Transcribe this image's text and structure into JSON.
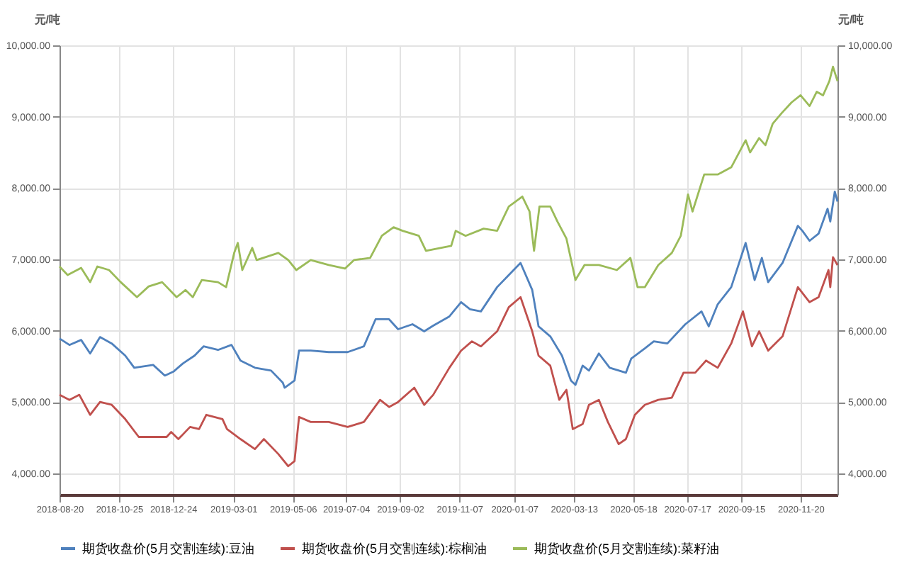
{
  "chart_data": {
    "type": "line",
    "ylabel": "元/吨",
    "y2label": "元/吨",
    "xlim": [
      "2018-08-20",
      "2020-12-31"
    ],
    "xticks": [
      "2018-08-20",
      "2018-10-25",
      "2018-12-24",
      "2019-03-01",
      "2019-05-06",
      "2019-07-04",
      "2019-09-02",
      "2019-11-07",
      "2020-01-07",
      "2020-03-13",
      "2020-05-18",
      "2020-07-17",
      "2020-09-15",
      "2020-11-20"
    ],
    "ylim": [
      3700,
      10000
    ],
    "yticks": [
      {
        "value": 4000,
        "label": "4,000.00"
      },
      {
        "value": 5000,
        "label": "5,000.00"
      },
      {
        "value": 6000,
        "label": "6,000.00"
      },
      {
        "value": 7000,
        "label": "7,000.00"
      },
      {
        "value": 8000,
        "label": "8,000.00"
      },
      {
        "value": 9000,
        "label": "9,000.00"
      },
      {
        "value": 10000,
        "label": "10,000.00"
      }
    ],
    "y2lim": [
      3700,
      10000
    ],
    "y2ticks": [
      {
        "value": 4000,
        "label": "4,000.00"
      },
      {
        "value": 5000,
        "label": "5,000.00"
      },
      {
        "value": 6000,
        "label": "6,000.00"
      },
      {
        "value": 7000,
        "label": "7,000.00"
      },
      {
        "value": 8000,
        "label": "8,000.00"
      },
      {
        "value": 9000,
        "label": "9,000.00"
      },
      {
        "value": 10000,
        "label": "10,000.00"
      }
    ],
    "grid": true,
    "legend": "bottom",
    "line_style": "solid",
    "series": [
      {
        "name": "期货收盘价(5月交割连续):豆油",
        "color": "#4f81bd",
        "x": [
          "2018-08-20",
          "2018-08-31",
          "2018-09-13",
          "2018-09-23",
          "2018-10-04",
          "2018-10-17",
          "2018-11-01",
          "2018-11-11",
          "2018-12-02",
          "2018-12-15",
          "2018-12-25",
          "2019-01-04",
          "2019-01-17",
          "2019-01-27",
          "2019-02-12",
          "2019-02-27",
          "2019-03-09",
          "2019-03-25",
          "2019-04-12",
          "2019-04-25",
          "2019-04-27",
          "2019-05-08",
          "2019-05-13",
          "2019-05-26",
          "2019-06-15",
          "2019-07-06",
          "2019-07-24",
          "2019-08-06",
          "2019-08-21",
          "2019-08-31",
          "2019-09-16",
          "2019-09-29",
          "2019-10-09",
          "2019-10-27",
          "2019-11-09",
          "2019-11-19",
          "2019-12-01",
          "2019-12-19",
          "2020-01-01",
          "2020-01-14",
          "2020-01-27",
          "2020-02-03",
          "2020-02-16",
          "2020-02-29",
          "2020-03-10",
          "2020-03-15",
          "2020-03-23",
          "2020-03-30",
          "2020-04-10",
          "2020-04-22",
          "2020-05-10",
          "2020-05-16",
          "2020-05-31",
          "2020-06-10",
          "2020-06-25",
          "2020-07-15",
          "2020-08-02",
          "2020-08-10",
          "2020-08-20",
          "2020-09-04",
          "2020-09-20",
          "2020-09-30",
          "2020-10-08",
          "2020-10-15",
          "2020-10-31",
          "2020-11-17",
          "2020-11-22",
          "2020-11-30",
          "2020-12-10",
          "2020-12-20",
          "2020-12-23",
          "2020-12-28",
          "2020-12-31"
        ],
        "values": [
          5890,
          5800,
          5870,
          5680,
          5910,
          5820,
          5650,
          5480,
          5520,
          5370,
          5430,
          5540,
          5650,
          5780,
          5730,
          5800,
          5580,
          5480,
          5440,
          5270,
          5200,
          5300,
          5720,
          5720,
          5700,
          5700,
          5780,
          6160,
          6160,
          6020,
          6090,
          5990,
          6070,
          6200,
          6400,
          6300,
          6270,
          6610,
          6780,
          6950,
          6570,
          6060,
          5920,
          5650,
          5300,
          5240,
          5510,
          5440,
          5680,
          5480,
          5410,
          5610,
          5750,
          5850,
          5820,
          6090,
          6270,
          6060,
          6370,
          6610,
          7230,
          6710,
          7020,
          6680,
          6950,
          7470,
          7400,
          7260,
          7360,
          7710,
          7530,
          7950,
          7810
        ]
      },
      {
        "name": "期货收盘价(5月交割连续):棕榈油",
        "color": "#c0504d",
        "x": [
          "2018-08-20",
          "2018-08-31",
          "2018-09-11",
          "2018-09-23",
          "2018-10-04",
          "2018-10-17",
          "2018-11-01",
          "2018-11-16",
          "2018-12-02",
          "2018-12-17",
          "2018-12-22",
          "2018-12-30",
          "2019-01-12",
          "2019-01-22",
          "2019-01-30",
          "2019-02-17",
          "2019-02-22",
          "2019-03-09",
          "2019-03-25",
          "2019-04-04",
          "2019-04-20",
          "2019-05-01",
          "2019-05-08",
          "2019-05-13",
          "2019-05-26",
          "2019-06-15",
          "2019-07-06",
          "2019-07-24",
          "2019-08-11",
          "2019-08-21",
          "2019-08-31",
          "2019-09-18",
          "2019-09-29",
          "2019-10-09",
          "2019-10-27",
          "2019-11-09",
          "2019-11-21",
          "2019-12-01",
          "2019-12-19",
          "2020-01-01",
          "2020-01-14",
          "2020-01-27",
          "2020-02-03",
          "2020-02-16",
          "2020-02-26",
          "2020-03-05",
          "2020-03-12",
          "2020-03-23",
          "2020-03-30",
          "2020-04-10",
          "2020-04-20",
          "2020-05-02",
          "2020-05-10",
          "2020-05-20",
          "2020-05-31",
          "2020-06-15",
          "2020-06-30",
          "2020-07-13",
          "2020-07-26",
          "2020-08-07",
          "2020-08-20",
          "2020-09-04",
          "2020-09-17",
          "2020-09-27",
          "2020-10-05",
          "2020-10-15",
          "2020-10-31",
          "2020-11-17",
          "2020-11-30",
          "2020-12-10",
          "2020-12-21",
          "2020-12-23",
          "2020-12-26",
          "2020-12-31"
        ],
        "values": [
          5100,
          5030,
          5100,
          4820,
          5000,
          4960,
          4760,
          4510,
          4510,
          4510,
          4580,
          4480,
          4650,
          4620,
          4820,
          4760,
          4620,
          4480,
          4340,
          4480,
          4270,
          4100,
          4170,
          4790,
          4720,
          4720,
          4650,
          4720,
          5030,
          4930,
          5000,
          5200,
          4960,
          5100,
          5480,
          5720,
          5850,
          5780,
          5990,
          6330,
          6470,
          5990,
          5650,
          5510,
          5030,
          5170,
          4620,
          4690,
          4960,
          5030,
          4720,
          4410,
          4480,
          4820,
          4960,
          5030,
          5060,
          5410,
          5410,
          5580,
          5480,
          5820,
          6270,
          5780,
          5990,
          5720,
          5920,
          6610,
          6400,
          6470,
          6850,
          6610,
          7030,
          6920
        ]
      },
      {
        "name": "期货收盘价(5月交割连续):菜籽油",
        "color": "#9bbb59",
        "x": [
          "2018-08-20",
          "2018-08-29",
          "2018-09-13",
          "2018-09-23",
          "2018-10-01",
          "2018-10-14",
          "2018-10-27",
          "2018-11-14",
          "2018-11-27",
          "2018-12-12",
          "2018-12-28",
          "2019-01-07",
          "2019-01-15",
          "2019-01-25",
          "2019-02-12",
          "2019-02-21",
          "2019-03-02",
          "2019-03-06",
          "2019-03-11",
          "2019-03-22",
          "2019-03-27",
          "2019-04-20",
          "2019-05-01",
          "2019-05-10",
          "2019-05-26",
          "2019-06-15",
          "2019-07-03",
          "2019-07-13",
          "2019-07-31",
          "2019-08-13",
          "2019-08-26",
          "2019-09-05",
          "2019-09-23",
          "2019-10-01",
          "2019-10-29",
          "2019-11-03",
          "2019-11-14",
          "2019-12-04",
          "2019-12-19",
          "2020-01-01",
          "2020-01-16",
          "2020-01-24",
          "2020-01-29",
          "2020-02-04",
          "2020-02-16",
          "2020-02-24",
          "2020-03-05",
          "2020-03-15",
          "2020-03-25",
          "2020-04-10",
          "2020-04-30",
          "2020-05-15",
          "2020-05-23",
          "2020-05-31",
          "2020-06-15",
          "2020-06-30",
          "2020-07-10",
          "2020-07-18",
          "2020-07-23",
          "2020-08-05",
          "2020-08-20",
          "2020-09-04",
          "2020-09-20",
          "2020-09-25",
          "2020-10-05",
          "2020-10-12",
          "2020-10-20",
          "2020-10-30",
          "2020-11-10",
          "2020-11-20",
          "2020-11-30",
          "2020-12-08",
          "2020-12-15",
          "2020-12-22",
          "2020-12-26",
          "2020-12-31"
        ],
        "values": [
          6900,
          6780,
          6880,
          6680,
          6900,
          6850,
          6680,
          6470,
          6620,
          6680,
          6470,
          6570,
          6470,
          6710,
          6680,
          6610,
          7090,
          7230,
          6850,
          7160,
          6990,
          7090,
          6990,
          6850,
          6990,
          6920,
          6870,
          6990,
          7020,
          7330,
          7450,
          7400,
          7330,
          7120,
          7190,
          7400,
          7330,
          7430,
          7400,
          7740,
          7880,
          7670,
          7120,
          7740,
          7740,
          7530,
          7290,
          6710,
          6920,
          6920,
          6850,
          7020,
          6610,
          6610,
          6920,
          7090,
          7330,
          7910,
          7670,
          8190,
          8190,
          8290,
          8670,
          8500,
          8700,
          8600,
          8900,
          9050,
          9200,
          9300,
          9150,
          9350,
          9300,
          9500,
          9700,
          9500
        ]
      }
    ]
  }
}
